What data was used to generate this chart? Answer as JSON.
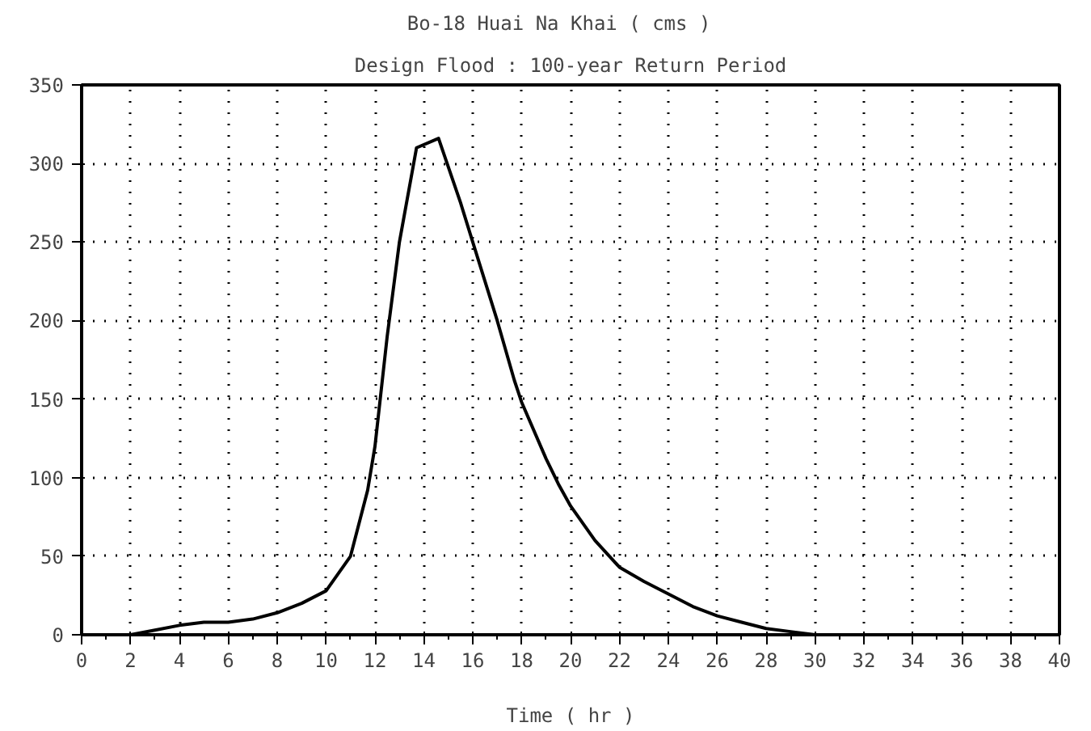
{
  "chart_data": {
    "type": "line",
    "title": "Bo-18 Huai Na Khai   ( cms )",
    "subtitle": "Design Flood : 100-year Return Period",
    "xlabel": "Time ( hr )",
    "x": [
      0,
      1,
      2,
      3,
      4,
      5,
      6,
      7,
      8,
      9,
      10,
      11,
      11.7,
      12,
      12.5,
      13,
      13.7,
      14.6,
      15.5,
      16,
      17,
      17.7,
      18,
      19,
      19.5,
      20,
      21,
      22,
      23,
      24,
      25,
      26,
      27,
      28,
      29,
      30,
      32,
      34,
      36,
      38,
      40
    ],
    "series": [
      {
        "color": "#000000",
        "values": [
          0,
          0,
          0,
          3,
          6,
          8,
          8,
          10,
          14,
          20,
          28,
          50,
          92,
          120,
          190,
          250,
          310,
          316,
          275,
          250,
          200,
          162,
          148,
          112,
          96,
          82,
          60,
          43,
          34,
          26,
          18,
          12,
          8,
          4,
          2,
          0,
          0,
          0,
          0,
          0,
          0
        ]
      }
    ],
    "xlim": [
      0,
      40
    ],
    "xticks": [
      0,
      2,
      4,
      6,
      8,
      10,
      12,
      14,
      16,
      18,
      20,
      22,
      24,
      26,
      28,
      30,
      32,
      34,
      36,
      38,
      40
    ],
    "ylim": [
      0,
      350
    ],
    "yticks": [
      0,
      50,
      100,
      150,
      200,
      250,
      300,
      350
    ],
    "grid": true,
    "marker": "none",
    "line_style": "solid"
  }
}
